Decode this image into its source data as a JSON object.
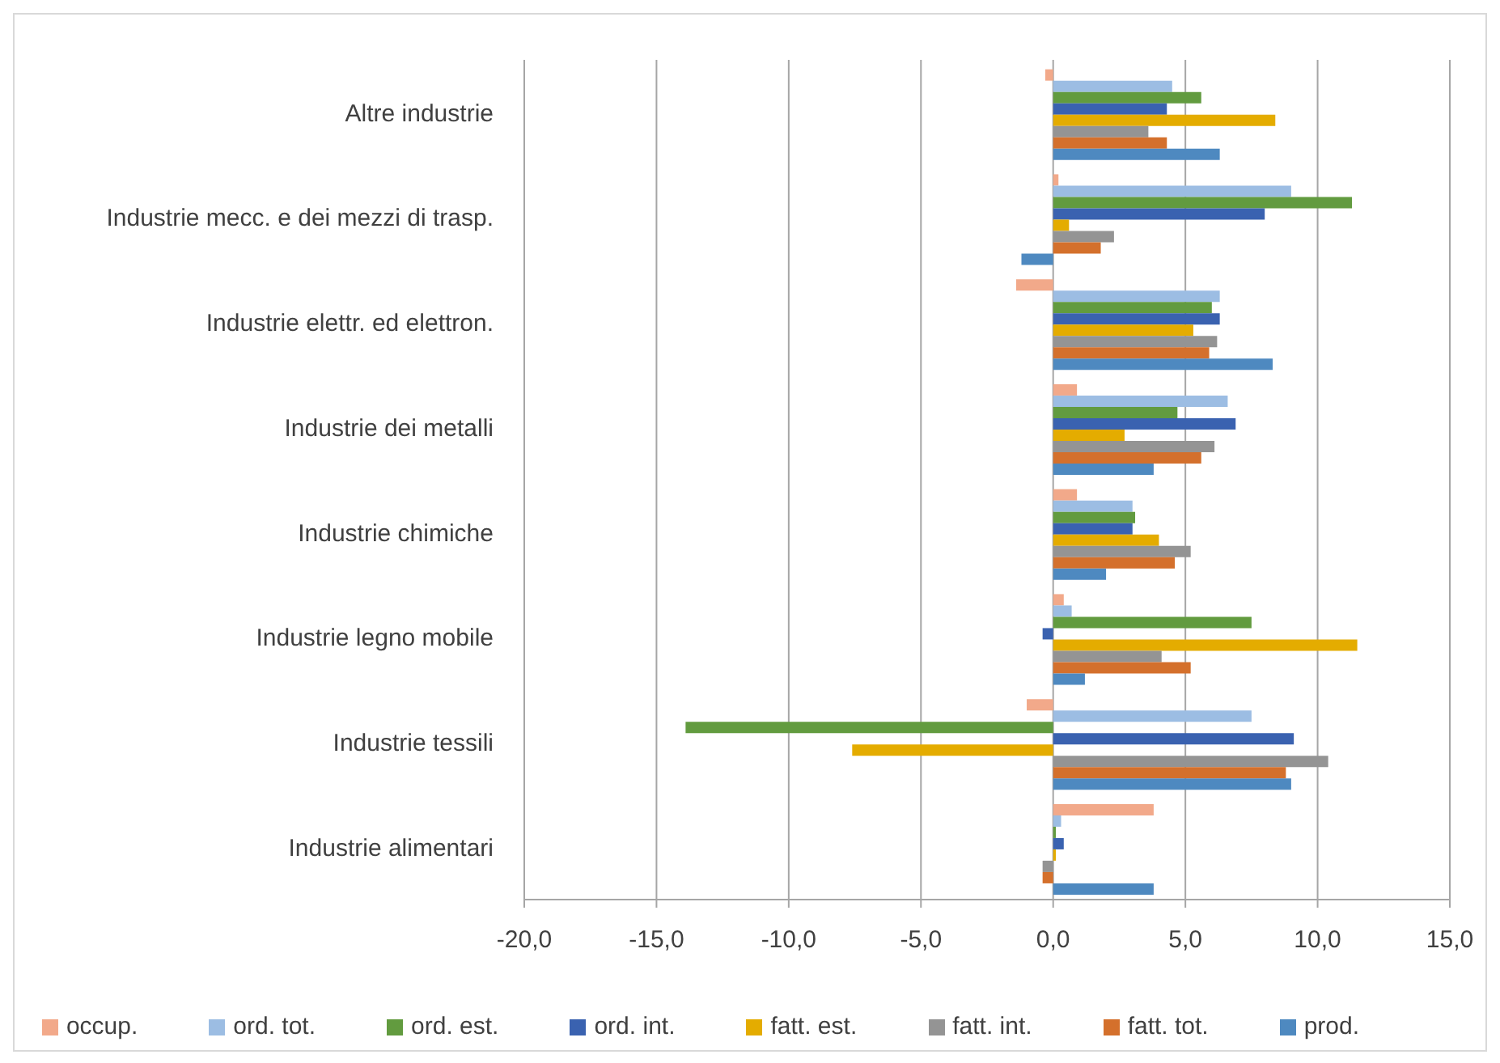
{
  "chart_data": {
    "type": "bar",
    "orientation": "horizontal",
    "categories": [
      "Altre industrie",
      "Industrie mecc. e dei mezzi di trasp.",
      "Industrie elettr. ed elettron.",
      "Industrie dei metalli",
      "Industrie chimiche",
      "Industrie legno mobile",
      "Industrie tessili",
      "Industrie alimentari"
    ],
    "series": [
      {
        "name": "occup.",
        "color": "#f2a98a",
        "values": [
          -0.3,
          0.2,
          -1.4,
          0.9,
          0.9,
          0.4,
          -1.0,
          3.8
        ]
      },
      {
        "name": "ord. tot.",
        "color": "#9cbde3",
        "values": [
          4.5,
          9.0,
          6.3,
          6.6,
          3.0,
          0.7,
          7.5,
          0.3
        ]
      },
      {
        "name": "ord. est.",
        "color": "#629b3f",
        "values": [
          5.6,
          11.3,
          6.0,
          4.7,
          3.1,
          7.5,
          -13.9,
          0.1
        ]
      },
      {
        "name": "ord. int.",
        "color": "#3a62b0",
        "values": [
          4.3,
          8.0,
          6.3,
          6.9,
          3.0,
          -0.4,
          9.1,
          0.4
        ]
      },
      {
        "name": "fatt. est.",
        "color": "#e4ac00",
        "values": [
          8.4,
          0.6,
          5.3,
          2.7,
          4.0,
          11.5,
          -7.6,
          0.1
        ]
      },
      {
        "name": "fatt. int.",
        "color": "#949494",
        "values": [
          3.6,
          2.3,
          6.2,
          6.1,
          5.2,
          4.1,
          10.4,
          -0.4
        ]
      },
      {
        "name": "fatt. tot.",
        "color": "#d4702c",
        "values": [
          4.3,
          1.8,
          5.9,
          5.6,
          4.6,
          5.2,
          8.8,
          -0.4
        ]
      },
      {
        "name": "prod.",
        "color": "#4e89c0",
        "values": [
          6.3,
          -1.2,
          8.3,
          3.8,
          2.0,
          1.2,
          9.0,
          3.8
        ]
      }
    ],
    "xlim": [
      -20,
      15
    ],
    "xticks": [
      {
        "value": -20,
        "label": "-20,0"
      },
      {
        "value": -15,
        "label": "-15,0"
      },
      {
        "value": -10,
        "label": "-10,0"
      },
      {
        "value": -5,
        "label": "-5,0"
      },
      {
        "value": 0,
        "label": "0,0"
      },
      {
        "value": 5,
        "label": "5,0"
      },
      {
        "value": 10,
        "label": "10,0"
      },
      {
        "value": 15,
        "label": "15,0"
      }
    ],
    "grid": "x",
    "legend": "bottom"
  }
}
